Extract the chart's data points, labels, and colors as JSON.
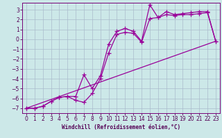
{
  "xlabel": "Windchill (Refroidissement éolien,°C)",
  "bg_color": "#cce8e8",
  "grid_color": "#aabbcc",
  "line_color": "#990099",
  "xlim": [
    -0.5,
    23.5
  ],
  "ylim": [
    -7.5,
    3.7
  ],
  "xticks": [
    0,
    1,
    2,
    3,
    4,
    5,
    6,
    7,
    8,
    9,
    10,
    11,
    12,
    13,
    14,
    15,
    16,
    17,
    18,
    19,
    20,
    21,
    22,
    23
  ],
  "yticks": [
    -7,
    -6,
    -5,
    -4,
    -3,
    -2,
    -1,
    0,
    1,
    2,
    3
  ],
  "line1_x": [
    0,
    1,
    2,
    3,
    4,
    5,
    6,
    7,
    8,
    9,
    10,
    11,
    12,
    13,
    14,
    15,
    16,
    17,
    18,
    19,
    20,
    21,
    22,
    23
  ],
  "line1_y": [
    -7.0,
    -7.0,
    -6.8,
    -6.3,
    -5.9,
    -5.8,
    -5.8,
    -3.6,
    -5.0,
    -3.7,
    -0.5,
    0.8,
    1.1,
    0.8,
    -0.2,
    3.5,
    2.2,
    2.8,
    2.5,
    2.6,
    2.7,
    2.8,
    2.8,
    -0.2
  ],
  "line2_x": [
    0,
    1,
    2,
    3,
    4,
    5,
    6,
    7,
    8,
    9,
    10,
    11,
    12,
    13,
    14,
    15,
    16,
    17,
    18,
    19,
    20,
    21,
    22,
    23
  ],
  "line2_y": [
    -7.0,
    -7.0,
    -6.8,
    -6.3,
    -5.9,
    -5.8,
    -6.2,
    -6.4,
    -5.5,
    -4.0,
    -1.4,
    0.5,
    0.7,
    0.6,
    -0.3,
    2.1,
    2.2,
    2.5,
    2.4,
    2.5,
    2.5,
    2.6,
    2.7,
    -0.2
  ],
  "line3_x": [
    0,
    23
  ],
  "line3_y": [
    -7.0,
    -0.2
  ]
}
